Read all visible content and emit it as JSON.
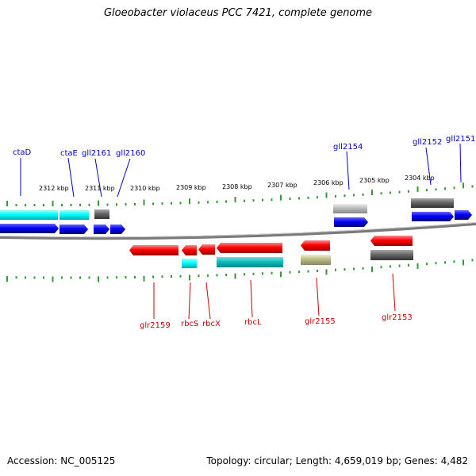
{
  "title": "Gloeobacter violaceus PCC 7421, complete genome",
  "accession": "Accession: NC_005125",
  "topology": "Topology: circular; Length: 4,659,019 bp; Genes: 4,482",
  "colors": {
    "forward_label": "#0000cc",
    "reverse_label": "#cc0000",
    "backbone": "#888888",
    "ticks": "#339933"
  },
  "scale_labels": [
    {
      "text": "2312 kbp"
    },
    {
      "text": "2311 kbp"
    },
    {
      "text": "2310 kbp"
    },
    {
      "text": "2309 kbp"
    },
    {
      "text": "2308 kbp"
    },
    {
      "text": "2307 kbp"
    },
    {
      "text": "2306 kbp"
    },
    {
      "text": "2305 kbp"
    },
    {
      "text": "2304 kbp"
    }
  ],
  "forward_labels": [
    "ctaD",
    "ctaE",
    "gll2161",
    "gll2160",
    "gll2154",
    "gll2152",
    "gll2151"
  ],
  "reverse_labels": [
    "glr2159",
    "rbcS",
    "rbcX",
    "rbcL",
    "glr2155",
    "glr2153"
  ]
}
